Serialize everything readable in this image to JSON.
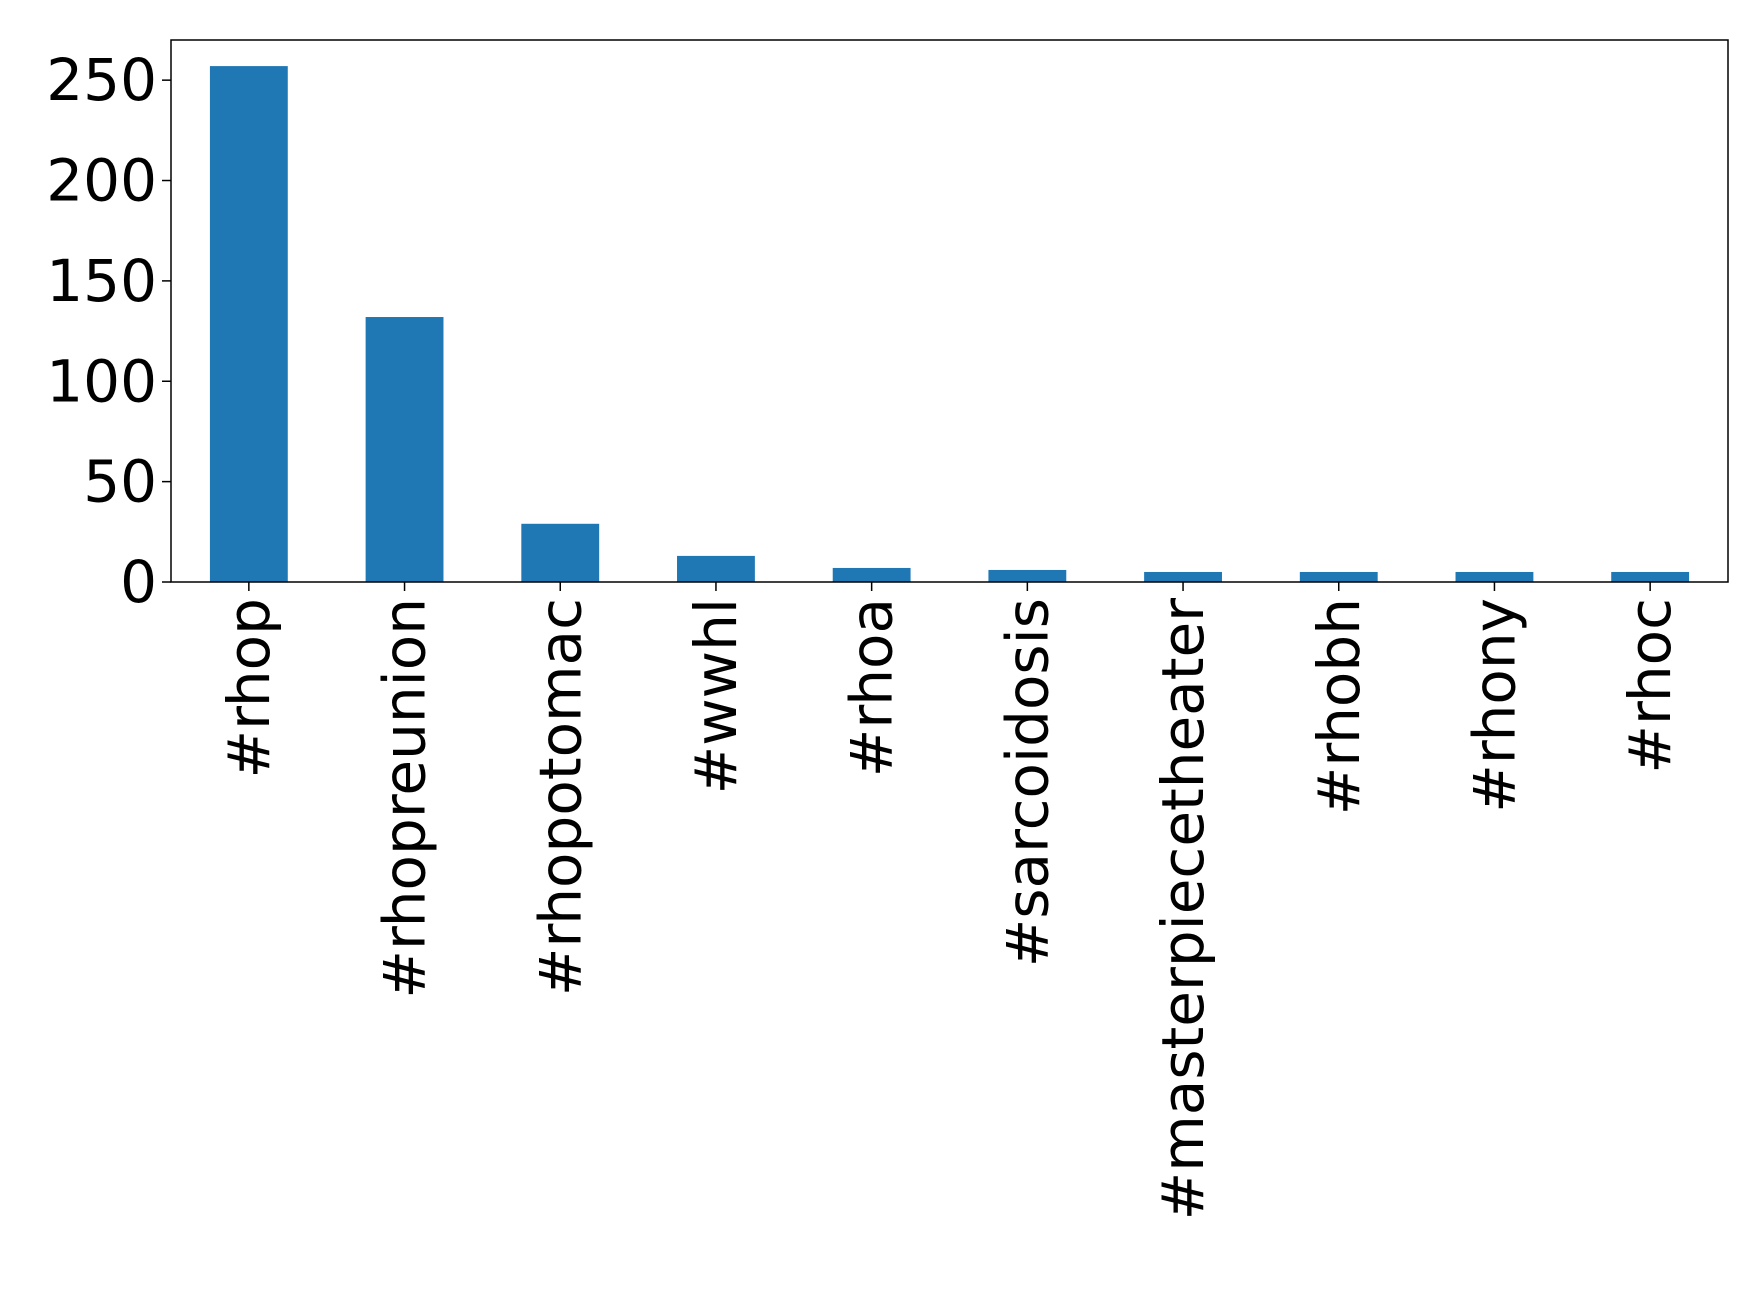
{
  "chart_data": {
    "type": "bar",
    "title": "",
    "xlabel": "",
    "ylabel": "",
    "categories": [
      "#rhop",
      "#rhopreunion",
      "#rhopotomac",
      "#wwhl",
      "#rhoa",
      "#sarcoidosis",
      "#masterpiecetheater",
      "#rhobh",
      "#rhony",
      "#rhoc"
    ],
    "values": [
      257,
      132,
      29,
      13,
      7,
      6,
      5,
      5,
      5,
      5
    ],
    "ylim": [
      0,
      270
    ],
    "yticks": [
      0,
      50,
      100,
      150,
      200,
      250
    ],
    "grid": false,
    "legend": "none",
    "bar_color": "#1f77b4"
  }
}
